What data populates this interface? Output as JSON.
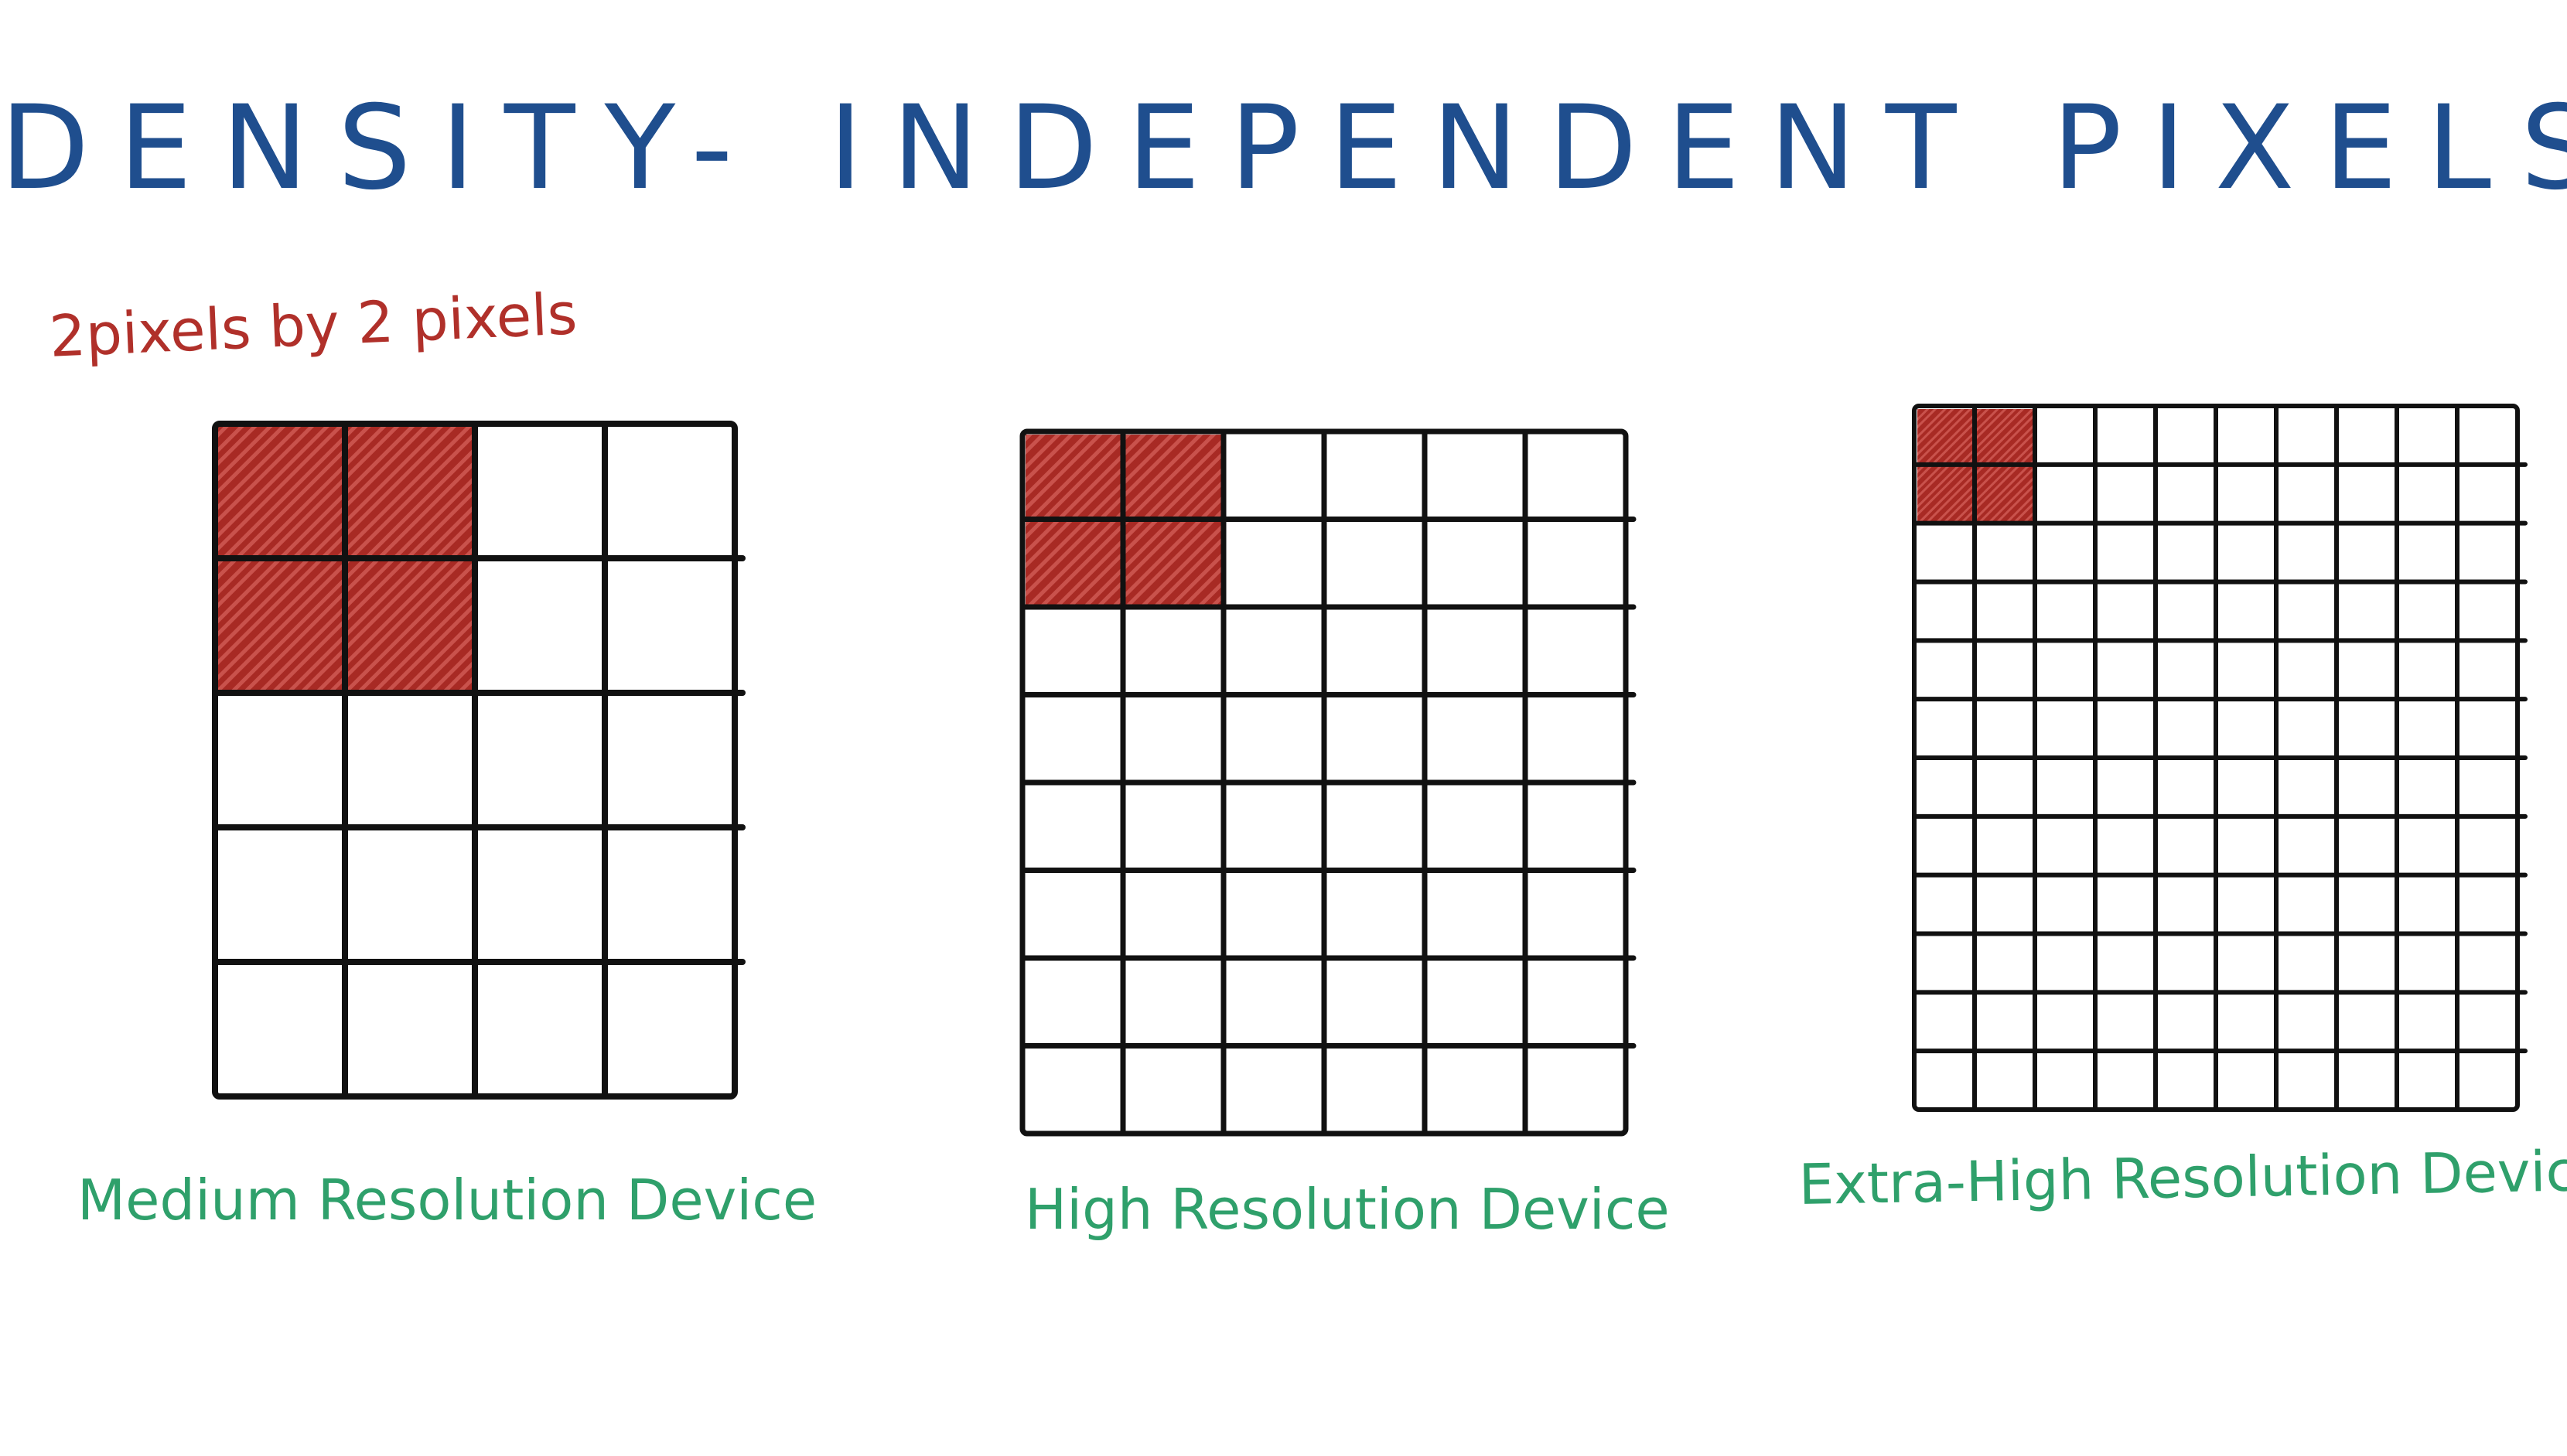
{
  "title": "DENSITY- INDEPENDENT PIXELS",
  "annotation": "2pixels by 2 pixels",
  "colors": {
    "title": "#1f4e8e",
    "annotation": "#b0302a",
    "highlight": "#b0302a",
    "caption": "#2fa06b",
    "grid_line": "#111111"
  },
  "grids": [
    {
      "label": "Medium Resolution Device",
      "columns": 4,
      "rows": 5,
      "highlighted_cells": [
        2,
        2
      ]
    },
    {
      "label": "High Resolution Device",
      "columns": 6,
      "rows": 8,
      "highlighted_cells": [
        2,
        2
      ]
    },
    {
      "label": "Extra-High Resolution Device",
      "columns": 10,
      "rows": 12,
      "highlighted_cells": [
        2,
        2
      ]
    }
  ]
}
